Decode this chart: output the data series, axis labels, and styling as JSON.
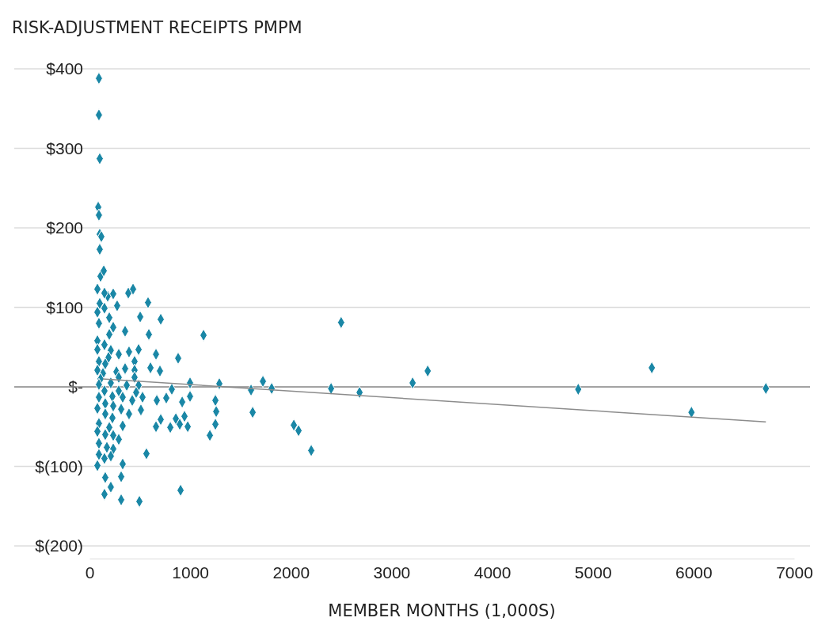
{
  "chart_data": {
    "type": "scatter",
    "ylabel": "RISK-ADJUSTMENT RECEIPTS PMPM",
    "xlabel": "MEMBER MONTHS (1,000S)",
    "xlim": [
      0,
      7000
    ],
    "xticks": [
      0,
      1000,
      2000,
      3000,
      4000,
      5000,
      6000,
      7000
    ],
    "ylim": [
      -200,
      400
    ],
    "yticks": [
      {
        "value": 400,
        "label": "$400"
      },
      {
        "value": 300,
        "label": "$300"
      },
      {
        "value": 200,
        "label": "$200"
      },
      {
        "value": 100,
        "label": "$100"
      },
      {
        "value": 0,
        "label": "$-"
      },
      {
        "value": -100,
        "label": "$(100)"
      },
      {
        "value": -200,
        "label": "$(200)"
      }
    ],
    "grid": "y",
    "ref_lines": [
      {
        "axis": "y",
        "value": 0,
        "color": "#8c8c8c"
      }
    ],
    "series": [
      {
        "color": "#1a87a6",
        "marker": "diamond",
        "x": [
          94,
          94,
          102,
          87,
          94,
          102,
          118,
          102,
          110,
          142,
          102,
          181,
          79,
          149,
          236,
          386,
          433,
          582,
          275,
          149,
          79,
          197,
          504,
          708,
          94,
          236,
          354,
          590,
          1133,
          197,
          79,
          149,
          79,
          212,
          393,
          488,
          661,
          881,
          189,
          291,
          94,
          448,
          157,
          354,
          606,
          700,
          268,
          79,
          134,
          448,
          110,
          291,
          448,
          212,
          94,
          999,
          1290,
          370,
          488,
          818,
          149,
          291,
          464,
          94,
          228,
          330,
          527,
          669,
          763,
          999,
          1251,
          921,
          157,
          425,
          79,
          236,
          315,
          393,
          511,
          1259,
          157,
          228,
          708,
          858,
          944,
          94,
          330,
          661,
          803,
          897,
          976,
          1251,
          197,
          79,
          157,
          236,
          1196,
          291,
          94,
          173,
          236,
          94,
          212,
          566,
          149,
          79,
          330,
          157,
          315,
          212,
          905,
          149,
          315,
          496,
          1605,
          1621,
          1723,
          1810,
          2030,
          2077,
          2203,
          2400,
          2500,
          2683,
          3210,
          3360,
          4855,
          5586,
          5980,
          6719
        ],
        "values": [
          388,
          342,
          287,
          226,
          216,
          192,
          189,
          173,
          139,
          146,
          105,
          114,
          123,
          118,
          117,
          118,
          123,
          106,
          102,
          99,
          94,
          87,
          88,
          85,
          80,
          75,
          70,
          66,
          65,
          66,
          58,
          53,
          47,
          46,
          44,
          47,
          41,
          36,
          37,
          41,
          32,
          32,
          29,
          23,
          24,
          20,
          19,
          21,
          17,
          21,
          10,
          12,
          12,
          5,
          3,
          5,
          4,
          2,
          2,
          -3,
          -5,
          -5,
          -7,
          -13,
          -12,
          -13,
          -13,
          -17,
          -14,
          -12,
          -17,
          -19,
          -21,
          -17,
          -27,
          -24,
          -28,
          -34,
          -29,
          -31,
          -34,
          -39,
          -41,
          -40,
          -37,
          -46,
          -49,
          -50,
          -51,
          -47,
          -50,
          -47,
          -51,
          -56,
          -60,
          -61,
          -61,
          -66,
          -71,
          -76,
          -78,
          -85,
          -87,
          -84,
          -90,
          -99,
          -97,
          -114,
          -113,
          -126,
          -130,
          -135,
          -142,
          -144,
          -4,
          -32,
          7,
          -2,
          -48,
          -55,
          -80,
          -2,
          81,
          -7,
          5,
          20,
          -3,
          24,
          -32,
          -2
        ]
      },
      {
        "type": "line",
        "color": "#8c8c8c",
        "x": [
          134,
          6719
        ],
        "values": [
          10,
          -44
        ],
        "marker": "none"
      }
    ]
  }
}
